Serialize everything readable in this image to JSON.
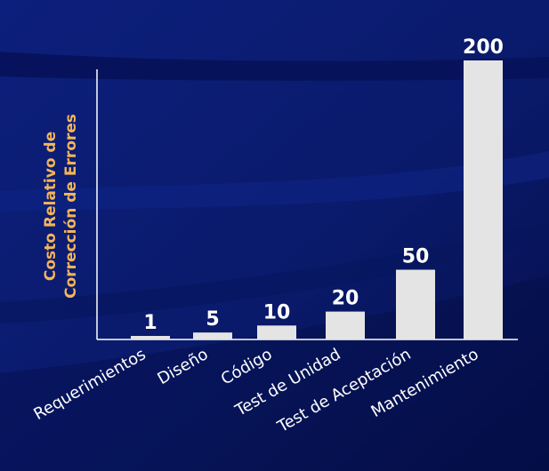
{
  "chart_data": {
    "type": "bar",
    "categories": [
      "Requerimientos",
      "Diseño",
      "Código",
      "Test de Unidad",
      "Test de Aceptación",
      "Mantenimiento"
    ],
    "values": [
      1,
      5,
      10,
      20,
      50,
      200
    ],
    "value_labels": [
      "1",
      "5",
      "10",
      "20",
      "50",
      "200"
    ],
    "ylabel_lines": [
      "Costo Relativo de",
      "Corrección de Errores"
    ],
    "ylim": [
      0,
      200
    ],
    "grid": false,
    "colors": {
      "background": "#0a1a6e",
      "bar": "#e4e4e4",
      "ylabel": "#f4b45a",
      "text": "#ffffff"
    }
  }
}
